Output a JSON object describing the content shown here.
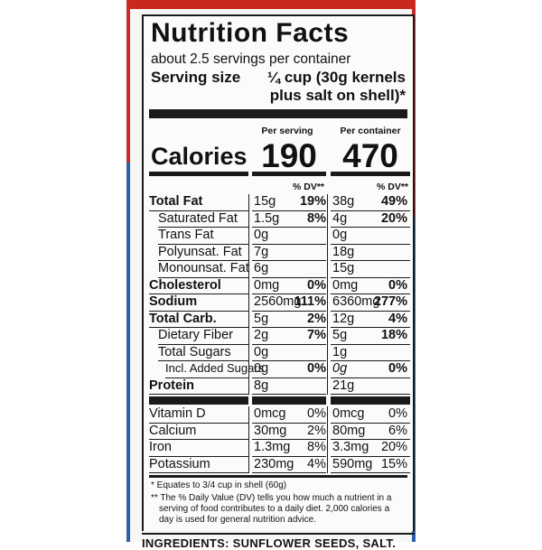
{
  "title": "Nutrition Facts",
  "servings_per_container": "about 2.5 servings per container",
  "serving_size_label": "Serving size",
  "serving_size_value_line1": "¼ cup (30g kernels",
  "serving_size_value_line2": "plus salt on shell)*",
  "calories_label": "Calories",
  "per_serving_label": "Per serving",
  "per_container_label": "Per container",
  "calories_per_serving": "190",
  "calories_per_container": "470",
  "dv_header": "% DV**",
  "nutrients": [
    {
      "label": "Total Fat",
      "serving_amount": "15g",
      "serving_dv": "19%",
      "container_amount": "38g",
      "container_dv": "49%"
    },
    {
      "label": "Saturated Fat",
      "serving_amount": "1.5g",
      "serving_dv": "8%",
      "container_amount": "4g",
      "container_dv": "20%"
    },
    {
      "label": "Trans Fat",
      "serving_amount": "0g",
      "serving_dv": "",
      "container_amount": "0g",
      "container_dv": ""
    },
    {
      "label": "Polyunsat. Fat",
      "serving_amount": "7g",
      "serving_dv": "",
      "container_amount": "18g",
      "container_dv": ""
    },
    {
      "label": "Monounsat. Fat",
      "serving_amount": "6g",
      "serving_dv": "",
      "container_amount": "15g",
      "container_dv": ""
    },
    {
      "label": "Cholesterol",
      "serving_amount": "0mg",
      "serving_dv": "0%",
      "container_amount": "0mg",
      "container_dv": "0%"
    },
    {
      "label": "Sodium",
      "serving_amount": "2560mg",
      "serving_dv": "111%",
      "container_amount": "6360mg",
      "container_dv": "277%"
    },
    {
      "label": "Total Carb.",
      "serving_amount": "5g",
      "serving_dv": "2%",
      "container_amount": "12g",
      "container_dv": "4%"
    },
    {
      "label": "Dietary Fiber",
      "serving_amount": "2g",
      "serving_dv": "7%",
      "container_amount": "5g",
      "container_dv": "18%"
    },
    {
      "label": "Total Sugars",
      "serving_amount": "0g",
      "serving_dv": "",
      "container_amount": "1g",
      "container_dv": ""
    },
    {
      "label": "Incl. Added Sugars",
      "serving_amount": "0g",
      "serving_dv": "0%",
      "container_amount": "0g",
      "container_dv": "0%"
    },
    {
      "label": "Protein",
      "serving_amount": "8g",
      "serving_dv": "",
      "container_amount": "21g",
      "container_dv": ""
    }
  ],
  "vitamins": [
    {
      "label": "Vitamin D",
      "serving_amount": "0mcg",
      "serving_dv": "0%",
      "container_amount": "0mcg",
      "container_dv": "0%"
    },
    {
      "label": "Calcium",
      "serving_amount": "30mg",
      "serving_dv": "2%",
      "container_amount": "80mg",
      "container_dv": "6%"
    },
    {
      "label": "Iron",
      "serving_amount": "1.3mg",
      "serving_dv": "8%",
      "container_amount": "3.3mg",
      "container_dv": "20%"
    },
    {
      "label": "Potassium",
      "serving_amount": "230mg",
      "serving_dv": "4%",
      "container_amount": "590mg",
      "container_dv": "15%"
    }
  ],
  "footnote_1": "* Equates to 3/4 cup in shell (60g)",
  "footnote_2_line1": "** The % Daily Value (DV) tells you how much a nutrient in a",
  "footnote_2_line2": "serving of food contributes to a daily diet. 2,000 calories a",
  "footnote_2_line3": "day is used for general nutrition advice.",
  "ingredients": "INGREDIENTS: SUNFLOWER SEEDS, SALT."
}
